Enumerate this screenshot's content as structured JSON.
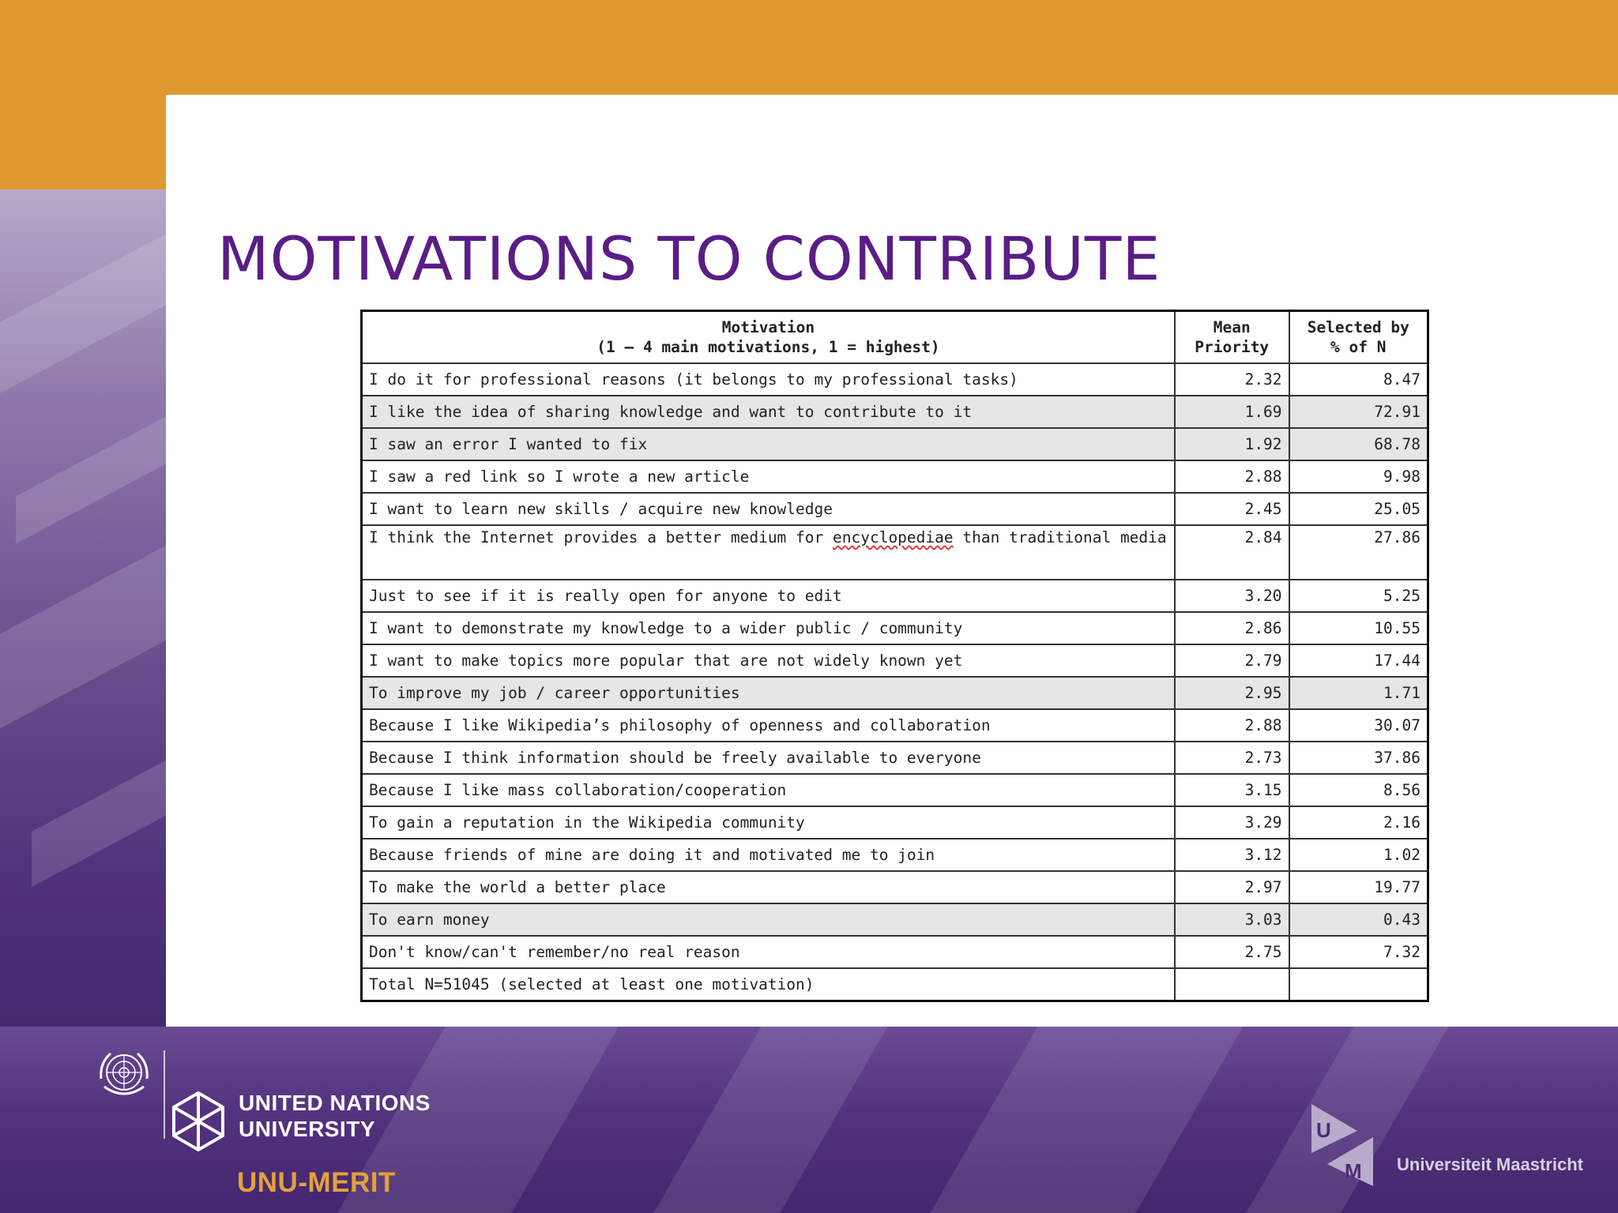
{
  "slide": {
    "title": "MOTIVATIONS TO CONTRIBUTE"
  },
  "table": {
    "header": {
      "motivation_line1": "Motivation",
      "motivation_line2": "(1 – 4 main motivations, 1 = highest)",
      "mean_line1": "Mean",
      "mean_line2": "Priority",
      "selected_line1": "Selected by",
      "selected_line2": "% of N"
    },
    "rows": [
      {
        "motivation": "I do it for professional reasons (it belongs to my professional tasks)",
        "mean": "2.32",
        "pct": "8.47"
      },
      {
        "motivation": "I like the idea of sharing knowledge and want to contribute to it",
        "mean": "1.69",
        "pct": "72.91"
      },
      {
        "motivation": "I saw an error I wanted to fix",
        "mean": "1.92",
        "pct": "68.78"
      },
      {
        "motivation": "I saw a red link so I wrote a new article",
        "mean": "2.88",
        "pct": "9.98"
      },
      {
        "motivation": "I want to learn new skills / acquire new knowledge",
        "mean": "2.45",
        "pct": "25.05"
      },
      {
        "motivation_part1": "I think the Internet provides a better medium for ",
        "motivation_part2": "encyclopediae",
        "motivation_part3": " than traditional media",
        "mean": "2.84",
        "pct": "27.86"
      },
      {
        "motivation": "Just to see if it is really open for anyone to edit",
        "mean": "3.20",
        "pct": "5.25"
      },
      {
        "motivation": "I want to demonstrate my knowledge to a wider public / community",
        "mean": "2.86",
        "pct": "10.55"
      },
      {
        "motivation": "I want to make topics more popular that are not widely known yet",
        "mean": "2.79",
        "pct": "17.44"
      },
      {
        "motivation": "To improve my job / career opportunities",
        "mean": "2.95",
        "pct": "1.71"
      },
      {
        "motivation": "Because I like Wikipedia’s philosophy of openness and collaboration",
        "mean": "2.88",
        "pct": "30.07"
      },
      {
        "motivation": "Because I think information should be freely available to everyone",
        "mean": "2.73",
        "pct": "37.86"
      },
      {
        "motivation": "Because I like mass collaboration/cooperation",
        "mean": "3.15",
        "pct": "8.56"
      },
      {
        "motivation": "To gain a reputation in the Wikipedia community",
        "mean": "3.29",
        "pct": "2.16"
      },
      {
        "motivation": "Because friends of mine are doing it and motivated me to join",
        "mean": "3.12",
        "pct": "1.02"
      },
      {
        "motivation": "To make the world a better place",
        "mean": "2.97",
        "pct": "19.77"
      },
      {
        "motivation": "To earn money",
        "mean": "3.03",
        "pct": "0.43"
      },
      {
        "motivation": "Don't know/can't remember/no real reason",
        "mean": "2.75",
        "pct": "7.32 "
      },
      {
        "motivation": "Total N=51045 (selected at least one motivation)",
        "mean": "",
        "pct": ""
      }
    ]
  },
  "logos": {
    "unu_line1": "UNITED NATIONS",
    "unu_line2": "UNIVERSITY",
    "merit": "UNU-MERIT",
    "maastricht": "Universiteit Maastricht",
    "um_letter_u": "U",
    "um_letter_m": "M"
  },
  "colors": {
    "orange": "#DE9A2E",
    "purple_title": "#5a1d86",
    "footer_purple": "#54337e",
    "merit_orange": "#E3A23A"
  }
}
